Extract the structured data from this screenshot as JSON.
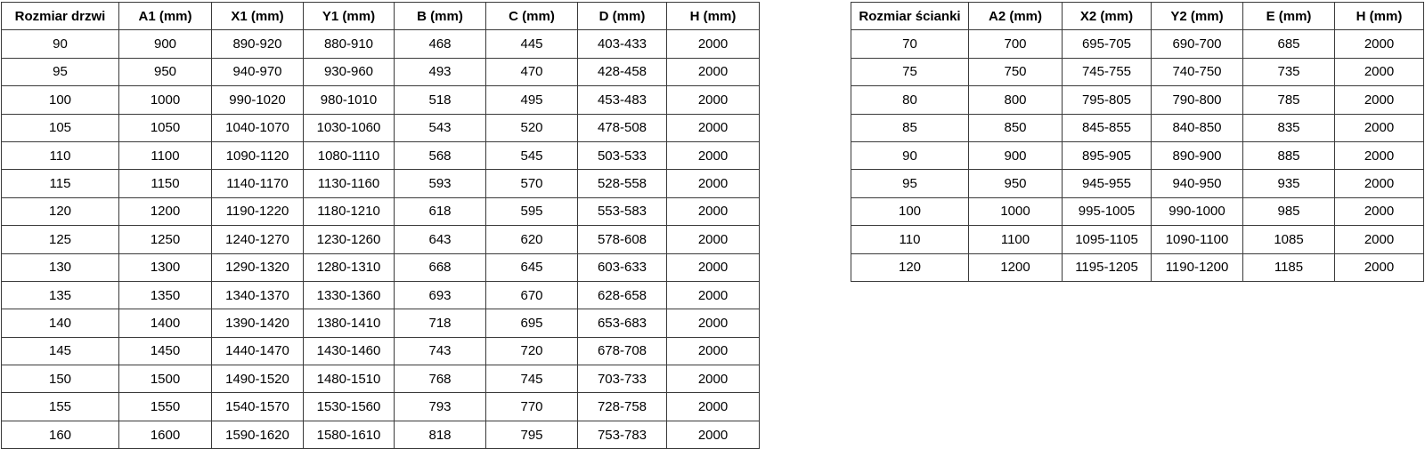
{
  "door_table": {
    "name": "door-size-table",
    "headers": [
      "Rozmiar drzwi",
      "A1 (mm)",
      "X1 (mm)",
      "Y1 (mm)",
      "B (mm)",
      "C (mm)",
      "D (mm)",
      "H (mm)"
    ],
    "rows": [
      [
        "90",
        "900",
        "890-920",
        "880-910",
        "468",
        "445",
        "403-433",
        "2000"
      ],
      [
        "95",
        "950",
        "940-970",
        "930-960",
        "493",
        "470",
        "428-458",
        "2000"
      ],
      [
        "100",
        "1000",
        "990-1020",
        "980-1010",
        "518",
        "495",
        "453-483",
        "2000"
      ],
      [
        "105",
        "1050",
        "1040-1070",
        "1030-1060",
        "543",
        "520",
        "478-508",
        "2000"
      ],
      [
        "110",
        "1100",
        "1090-1120",
        "1080-1110",
        "568",
        "545",
        "503-533",
        "2000"
      ],
      [
        "115",
        "1150",
        "1140-1170",
        "1130-1160",
        "593",
        "570",
        "528-558",
        "2000"
      ],
      [
        "120",
        "1200",
        "1190-1220",
        "1180-1210",
        "618",
        "595",
        "553-583",
        "2000"
      ],
      [
        "125",
        "1250",
        "1240-1270",
        "1230-1260",
        "643",
        "620",
        "578-608",
        "2000"
      ],
      [
        "130",
        "1300",
        "1290-1320",
        "1280-1310",
        "668",
        "645",
        "603-633",
        "2000"
      ],
      [
        "135",
        "1350",
        "1340-1370",
        "1330-1360",
        "693",
        "670",
        "628-658",
        "2000"
      ],
      [
        "140",
        "1400",
        "1390-1420",
        "1380-1410",
        "718",
        "695",
        "653-683",
        "2000"
      ],
      [
        "145",
        "1450",
        "1440-1470",
        "1430-1460",
        "743",
        "720",
        "678-708",
        "2000"
      ],
      [
        "150",
        "1500",
        "1490-1520",
        "1480-1510",
        "768",
        "745",
        "703-733",
        "2000"
      ],
      [
        "155",
        "1550",
        "1540-1570",
        "1530-1560",
        "793",
        "770",
        "728-758",
        "2000"
      ],
      [
        "160",
        "1600",
        "1590-1620",
        "1580-1610",
        "818",
        "795",
        "753-783",
        "2000"
      ]
    ]
  },
  "wall_table": {
    "name": "wall-size-table",
    "headers": [
      "Rozmiar ścianki",
      "A2 (mm)",
      "X2 (mm)",
      "Y2 (mm)",
      "E (mm)",
      "H (mm)"
    ],
    "rows": [
      [
        "70",
        "700",
        "695-705",
        "690-700",
        "685",
        "2000"
      ],
      [
        "75",
        "750",
        "745-755",
        "740-750",
        "735",
        "2000"
      ],
      [
        "80",
        "800",
        "795-805",
        "790-800",
        "785",
        "2000"
      ],
      [
        "85",
        "850",
        "845-855",
        "840-850",
        "835",
        "2000"
      ],
      [
        "90",
        "900",
        "895-905",
        "890-900",
        "885",
        "2000"
      ],
      [
        "95",
        "950",
        "945-955",
        "940-950",
        "935",
        "2000"
      ],
      [
        "100",
        "1000",
        "995-1005",
        "990-1000",
        "985",
        "2000"
      ],
      [
        "110",
        "1100",
        "1095-1105",
        "1090-1100",
        "1085",
        "2000"
      ],
      [
        "120",
        "1200",
        "1195-1205",
        "1190-1200",
        "1185",
        "2000"
      ]
    ]
  },
  "colors": {
    "border": "#3a3a3a",
    "text": "#000000",
    "background": "#ffffff"
  }
}
